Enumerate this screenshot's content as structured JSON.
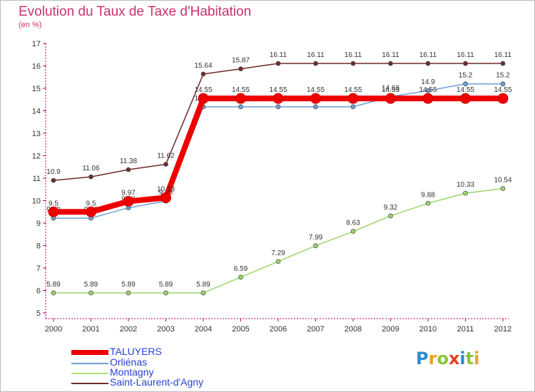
{
  "header": {
    "title": "Evolution du Taux de Taxe d'Habitation",
    "subtitle": "(en %)"
  },
  "legend": {
    "items": [
      {
        "label": "TALUYERS",
        "color": "#ee0000"
      },
      {
        "label": "Orliénas",
        "color": "#6f9fd0"
      },
      {
        "label": "Montagny",
        "color": "#aee07a"
      },
      {
        "label": "Saint-Laurent-d'Agny",
        "color": "#6e2a2a"
      }
    ]
  },
  "logo": {
    "letters": [
      "P",
      "r",
      "o",
      "x",
      "i",
      "t",
      "i"
    ],
    "colors": [
      "#2e8bd0",
      "#f0a020",
      "#8bc43a",
      "#e0402a",
      "#2e8bd0",
      "#8bc43a",
      "#f0a020"
    ]
  },
  "chart_data": {
    "type": "line",
    "title": "Evolution du Taux de Taxe d'Habitation",
    "ylabel": "(en %)",
    "xlabel": "",
    "x": [
      "2000",
      "2001",
      "2002",
      "2003",
      "2004",
      "2005",
      "2006",
      "2007",
      "2008",
      "2009",
      "2010",
      "2011",
      "2012"
    ],
    "ylim": [
      5,
      17
    ],
    "yticks": [
      "5",
      "6",
      "7",
      "8",
      "9",
      "10",
      "11",
      "12",
      "13",
      "14",
      "15",
      "16",
      "17"
    ],
    "grid": false,
    "series": [
      {
        "name": "Montagny",
        "color": "#9ed66a",
        "values": [
          5.89,
          5.89,
          5.89,
          5.89,
          5.89,
          6.59,
          7.29,
          7.99,
          8.63,
          9.32,
          9.88,
          10.33,
          10.54
        ],
        "labels": [
          "5.89",
          "5.89",
          "5.89",
          "5.89",
          "5.89",
          "6.59",
          "7.29",
          "7.99",
          "8.63",
          "9.32",
          "9.88",
          "10.33",
          "10.54"
        ]
      },
      {
        "name": "Saint-Laurent-d'Agny",
        "color": "#6e2a2a",
        "values": [
          10.9,
          11.06,
          11.38,
          11.62,
          15.64,
          15.87,
          16.11,
          16.11,
          16.11,
          16.11,
          16.11,
          16.11,
          16.11
        ],
        "labels": [
          "10.9",
          "11.06",
          "11.38",
          "11.62",
          "15.64",
          "15.87",
          "16.11",
          "16.11",
          "16.11",
          "16.11",
          "16.11",
          "16.11",
          "16.11"
        ]
      },
      {
        "name": "Orliénas",
        "color": "#6f9fd0",
        "values": [
          9.22,
          9.22,
          9.68,
          9.98,
          14.18,
          14.18,
          14.18,
          14.18,
          14.18,
          14.63,
          14.9,
          15.2,
          15.2
        ],
        "labels": [
          "9.22",
          "9.22",
          "9.68",
          "9.98",
          "14.18",
          "14.18",
          "14.18",
          "14.18",
          "14.18",
          "14.63",
          "14.9",
          "15.2",
          "15.2"
        ]
      },
      {
        "name": "TALUYERS",
        "color": "#ee0000",
        "values": [
          9.5,
          9.5,
          9.97,
          10.13,
          14.55,
          14.55,
          14.55,
          14.55,
          14.55,
          14.55,
          14.55,
          14.55,
          14.55
        ],
        "labels": [
          "9.5",
          "9.5",
          "9.97",
          "10.13",
          "14.55",
          "14.55",
          "14.55",
          "14.55",
          "14.55",
          "14.55",
          "14.55",
          "14.55",
          "14.55"
        ]
      }
    ]
  }
}
